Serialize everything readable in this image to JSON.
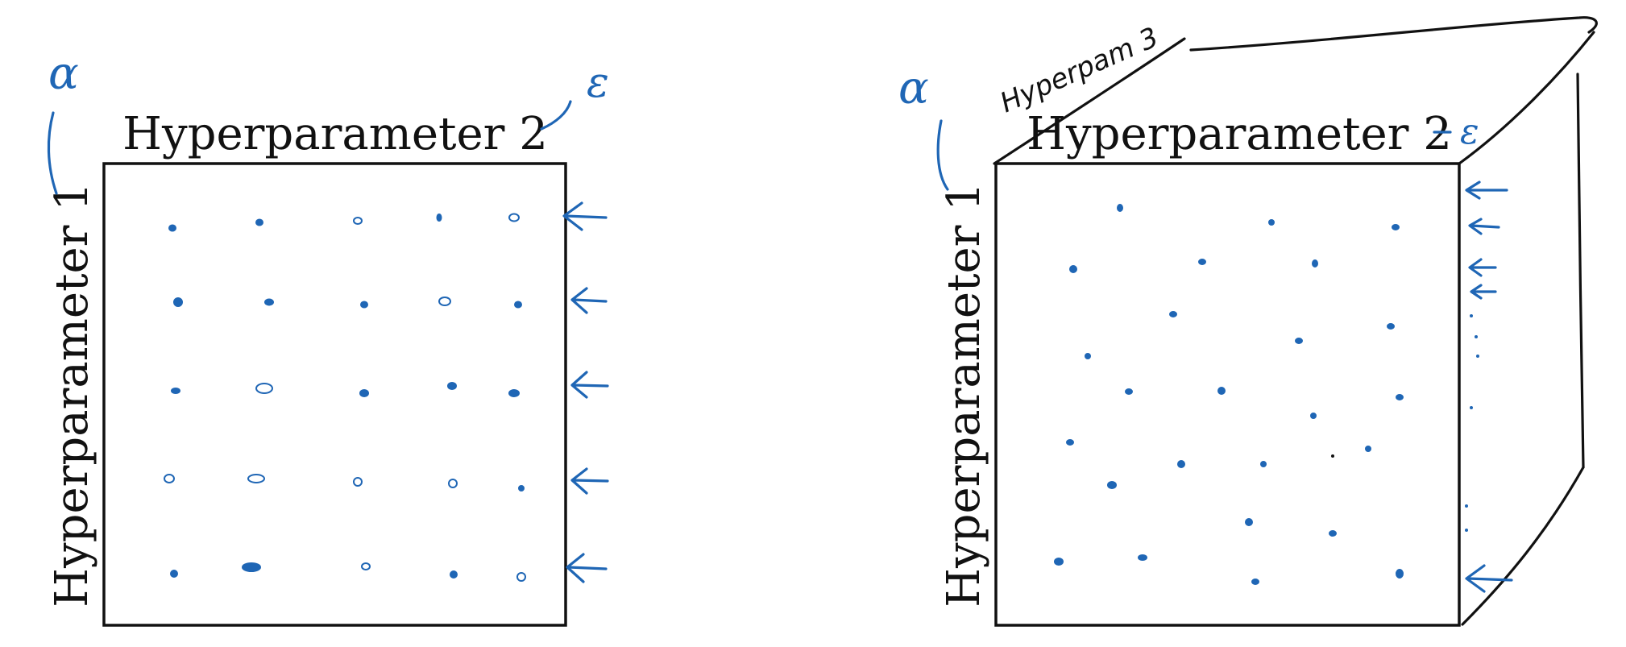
{
  "left_panel": {
    "x_axis_label": "Hyperparameter 2",
    "y_axis_label": "Hyperparameter 1",
    "x_annotation": "ε",
    "y_annotation": "α"
  },
  "right_panel": {
    "x_axis_label": "Hyperparameter 2",
    "y_axis_label": "Hyperparameter 1",
    "x_annotation": "ε",
    "y_annotation": "α",
    "depth_annotation": "Hyperpam 3"
  },
  "colors": {
    "ink": "#1f66b5",
    "text": "#111111"
  }
}
